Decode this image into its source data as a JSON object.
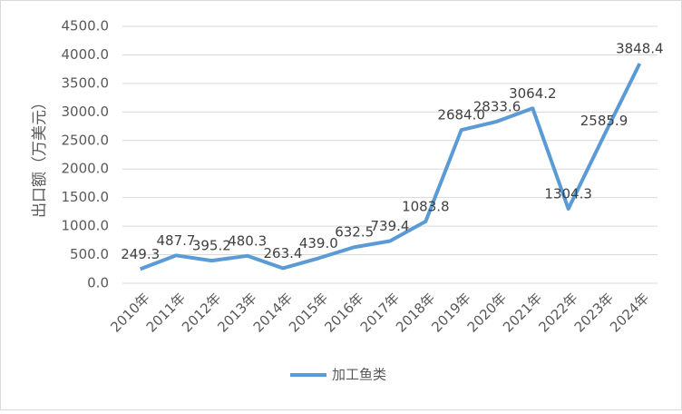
{
  "chart_data": {
    "type": "line",
    "y_label": "出口额（万美元）",
    "categories": [
      "2010年",
      "2011年",
      "2012年",
      "2013年",
      "2014年",
      "2015年",
      "2016年",
      "2017年",
      "2018年",
      "2019年",
      "2020年",
      "2021年",
      "2022年",
      "2023年",
      "2024年"
    ],
    "series": [
      {
        "name": "加工鱼类",
        "color": "#5b9bd5",
        "values": [
          249.3,
          487.7,
          395.2,
          480.3,
          263.4,
          439.0,
          632.5,
          739.4,
          1083.8,
          2684.0,
          2833.6,
          3064.2,
          1304.3,
          2585.9,
          3848.4
        ],
        "value_labels": [
          "249.3",
          "487.7",
          "395.2",
          "480.3",
          "263.4",
          "439.0",
          "632.5",
          "739.4",
          "1083.8",
          "2684.0",
          "2833.6",
          "3064.2",
          "1304.3",
          "2585.9",
          "3848.4"
        ]
      }
    ],
    "ylim": [
      0,
      4500
    ],
    "yticks": [
      {
        "value": 0,
        "label": "0.0"
      },
      {
        "value": 500,
        "label": "500.0"
      },
      {
        "value": 1000,
        "label": "1000.0"
      },
      {
        "value": 1500,
        "label": "1500.0"
      },
      {
        "value": 2000,
        "label": "2000.0"
      },
      {
        "value": 2500,
        "label": "2500.0"
      },
      {
        "value": 3000,
        "label": "3000.0"
      },
      {
        "value": 3500,
        "label": "3500.0"
      },
      {
        "value": 4000,
        "label": "4000.0"
      },
      {
        "value": 4500,
        "label": "4500.0"
      }
    ],
    "grid": true,
    "legend": "bottom"
  }
}
